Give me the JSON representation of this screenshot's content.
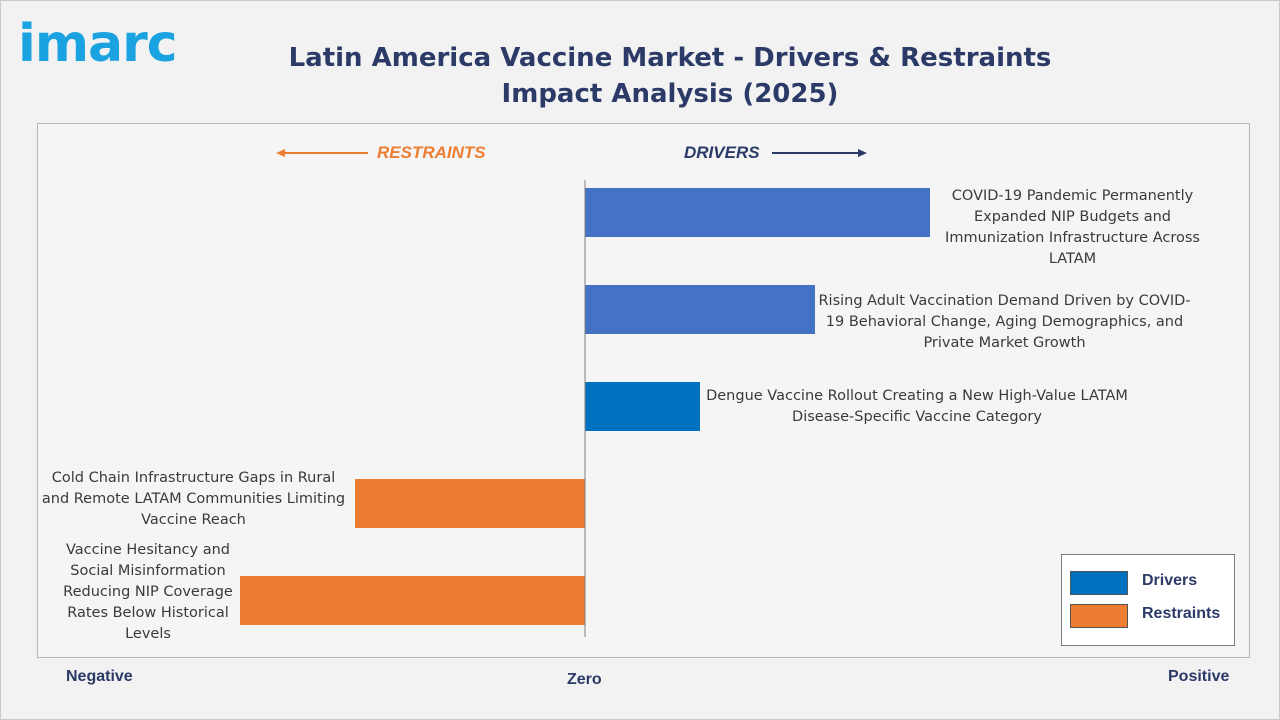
{
  "logo_text": "imarc",
  "colors": {
    "drivers": "#4472c4",
    "drivers_dark": "#0070c0",
    "restraints": "#ed7d31",
    "title": "#2b3a67"
  },
  "direction_labels": {
    "restraints": "RESTRAINTS",
    "drivers": "DRIVERS"
  },
  "axis": {
    "negative": "Negative",
    "zero": "Zero",
    "positive": "Positive"
  },
  "chart_data": {
    "type": "bar",
    "orientation": "horizontal",
    "title": "Latin America Vaccine Market - Drivers & Restraints Impact Analysis (2025)",
    "categories": [
      "COVID-19 Pandemic Permanently Expanded NIP Budgets and Immunization Infrastructure Across LATAM",
      "Rising Adult Vaccination Demand Driven by COVID-19 Behavioral Change, Aging Demographics, and Private Market Growth",
      "Dengue Vaccine Rollout Creating a New High-Value LATAM Disease-Specific Vaccine Category",
      "Cold Chain Infrastructure Gaps in Rural and Remote LATAM Communities Limiting Vaccine Reach",
      "Vaccine Hesitancy and Social Misinformation Reducing NIP Coverage Rates Below Historical Levels"
    ],
    "series": [
      {
        "name": "Drivers",
        "values": [
          3.0,
          2.0,
          1.0,
          null,
          null
        ]
      },
      {
        "name": "Restraints",
        "values": [
          null,
          null,
          null,
          -2.0,
          -3.0
        ]
      }
    ],
    "xlim": [
      -4.75,
      5.6
    ],
    "legend": "bottom-right"
  }
}
